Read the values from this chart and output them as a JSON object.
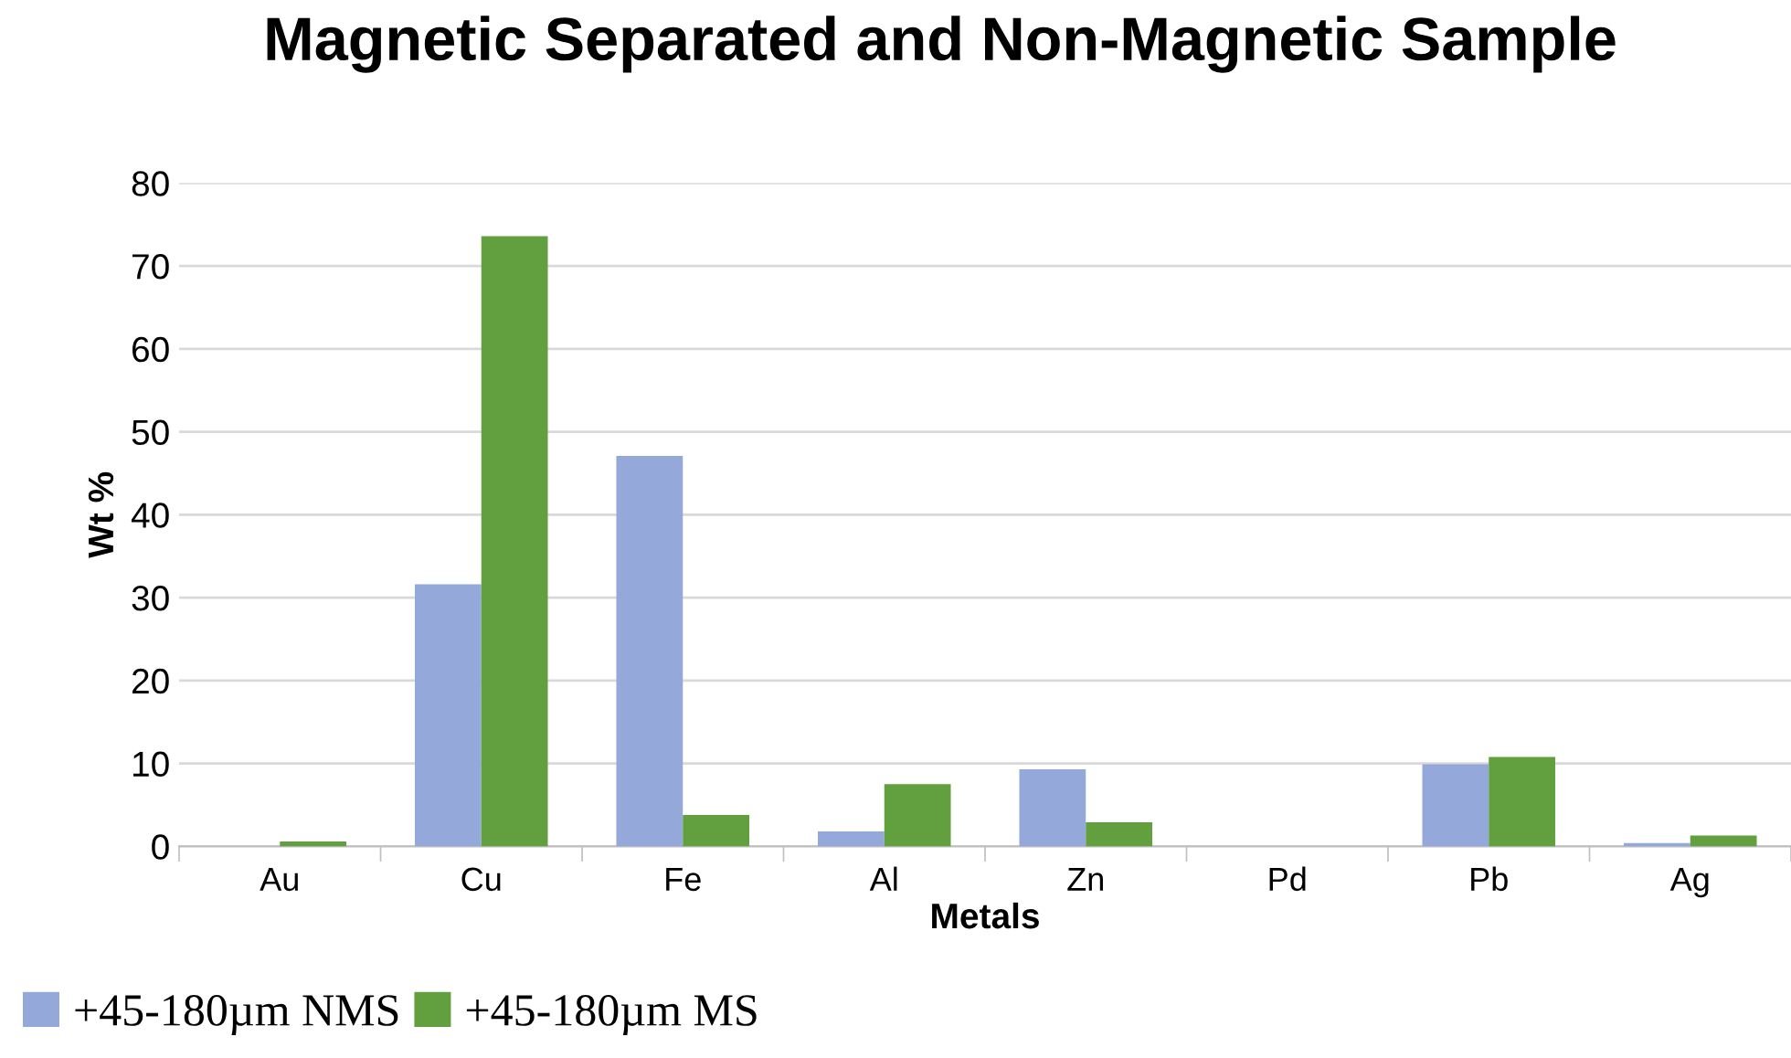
{
  "chart_data": {
    "type": "bar",
    "title": "Magnetic Separated and Non-Magnetic Sample",
    "xlabel": "Metals",
    "ylabel": "Wt %",
    "categories": [
      "Au",
      "Cu",
      "Fe",
      "Al",
      "Zn",
      "Pd",
      "Pb",
      "Ag"
    ],
    "series": [
      {
        "name": "+45-180µm NMS",
        "color": "#94a9d9",
        "values": [
          0,
          31.6,
          47.1,
          1.8,
          9.3,
          0,
          9.9,
          0.4
        ]
      },
      {
        "name": "+45-180µm MS",
        "color": "#62a03f",
        "values": [
          0.6,
          73.6,
          3.8,
          7.5,
          2.9,
          0,
          10.8,
          1.3
        ]
      }
    ],
    "ylim": [
      0,
      80
    ],
    "yticks": [
      0,
      10,
      20,
      30,
      40,
      50,
      60,
      70,
      80
    ],
    "grid": "y",
    "legend": "bottom left"
  }
}
